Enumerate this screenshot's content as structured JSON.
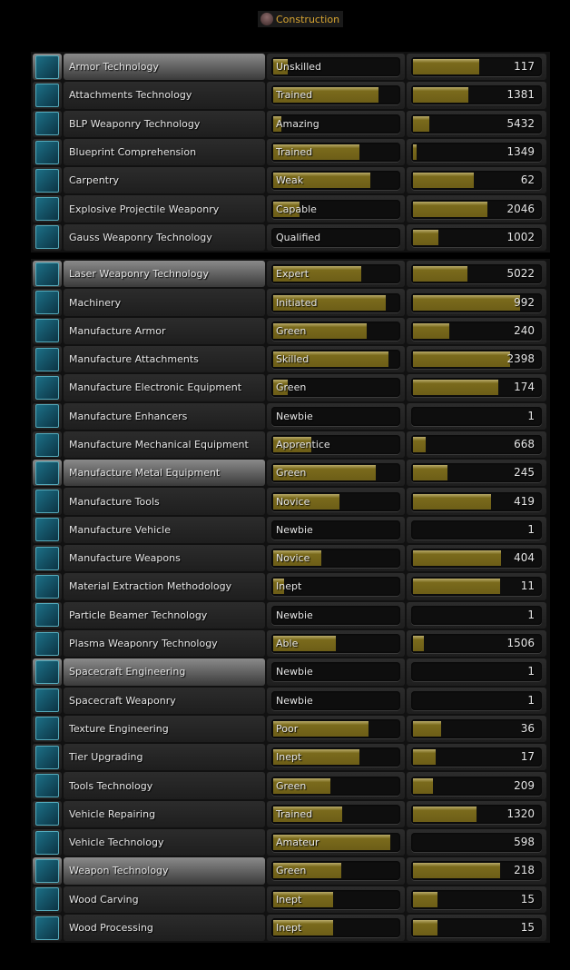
{
  "title": "Construction",
  "colors": {
    "accent": "#d8a531",
    "bar": "#7a6a1c"
  },
  "groups": [
    [
      {
        "name": "Armor Technology",
        "level": "Unskilled",
        "level_progress": 0.13,
        "value": "117",
        "value_progress": 0.52,
        "highlighted": true
      },
      {
        "name": "Attachments Technology",
        "level": "Trained",
        "level_progress": 0.83,
        "value": "1381",
        "value_progress": 0.44
      },
      {
        "name": "BLP Weaponry Technology",
        "level": "Amazing",
        "level_progress": 0.08,
        "value": "5432",
        "value_progress": 0.14
      },
      {
        "name": "Blueprint Comprehension",
        "level": "Trained",
        "level_progress": 0.68,
        "value": "1349",
        "value_progress": 0.04
      },
      {
        "name": "Carpentry",
        "level": "Weak",
        "level_progress": 0.77,
        "value": "62",
        "value_progress": 0.48
      },
      {
        "name": "Explosive Projectile Weaponry",
        "level": "Capable",
        "level_progress": 0.22,
        "value": "2046",
        "value_progress": 0.58
      },
      {
        "name": "Gauss Weaponry Technology",
        "level": "Qualified",
        "level_progress": 0,
        "value": "1002",
        "value_progress": 0.21
      }
    ],
    [
      {
        "name": "Laser Weaponry Technology",
        "level": "Expert",
        "level_progress": 0.7,
        "value": "5022",
        "value_progress": 0.43,
        "highlighted": true
      },
      {
        "name": "Machinery",
        "level": "Initiated",
        "level_progress": 0.89,
        "value": "992",
        "value_progress": 0.83
      },
      {
        "name": "Manufacture Armor",
        "level": "Green",
        "level_progress": 0.74,
        "value": "240",
        "value_progress": 0.29
      },
      {
        "name": "Manufacture Attachments",
        "level": "Skilled",
        "level_progress": 0.91,
        "value": "2398",
        "value_progress": 0.76
      },
      {
        "name": "Manufacture Electronic Equipment",
        "level": "Green",
        "level_progress": 0.13,
        "value": "174",
        "value_progress": 0.67
      },
      {
        "name": "Manufacture Enhancers",
        "level": "Newbie",
        "level_progress": 0,
        "value": "1",
        "value_progress": 0.01
      },
      {
        "name": "Manufacture Mechanical Equipment",
        "level": "Apprentice",
        "level_progress": 0.31,
        "value": "668",
        "value_progress": 0.11
      },
      {
        "name": "Manufacture Metal Equipment",
        "level": "Green",
        "level_progress": 0.81,
        "value": "245",
        "value_progress": 0.28,
        "highlighted": true
      },
      {
        "name": "Manufacture Tools",
        "level": "Novice",
        "level_progress": 0.53,
        "value": "419",
        "value_progress": 0.61
      },
      {
        "name": "Manufacture Vehicle",
        "level": "Newbie",
        "level_progress": 0,
        "value": "1",
        "value_progress": 0.01
      },
      {
        "name": "Manufacture Weapons",
        "level": "Novice",
        "level_progress": 0.39,
        "value": "404",
        "value_progress": 0.69
      },
      {
        "name": "Material Extraction Methodology",
        "level": "Inept",
        "level_progress": 0.1,
        "value": "11",
        "value_progress": 0.68
      },
      {
        "name": "Particle Beamer Technology",
        "level": "Newbie",
        "level_progress": 0,
        "value": "1",
        "value_progress": 0.01
      },
      {
        "name": "Plasma Weaponry Technology",
        "level": "Able",
        "level_progress": 0.5,
        "value": "1506",
        "value_progress": 0.1
      },
      {
        "name": "Spacecraft Engineering",
        "level": "Newbie",
        "level_progress": 0,
        "value": "1",
        "value_progress": 0.01,
        "highlighted": true
      },
      {
        "name": "Spacecraft Weaponry",
        "level": "Newbie",
        "level_progress": 0,
        "value": "1",
        "value_progress": 0.01
      },
      {
        "name": "Texture Engineering",
        "level": "Poor",
        "level_progress": 0.75,
        "value": "36",
        "value_progress": 0.23
      },
      {
        "name": "Tier Upgrading",
        "level": "Inept",
        "level_progress": 0.68,
        "value": "17",
        "value_progress": 0.19
      },
      {
        "name": "Tools Technology",
        "level": "Green",
        "level_progress": 0.46,
        "value": "209",
        "value_progress": 0.17
      },
      {
        "name": "Vehicle Repairing",
        "level": "Trained",
        "level_progress": 0.55,
        "value": "1320",
        "value_progress": 0.5
      },
      {
        "name": "Vehicle Technology",
        "level": "Amateur",
        "level_progress": 0.92,
        "value": "598",
        "value_progress": 0.01
      },
      {
        "name": "Weapon Technology",
        "level": "Green",
        "level_progress": 0.54,
        "value": "218",
        "value_progress": 0.68,
        "highlighted": true
      },
      {
        "name": "Wood Carving",
        "level": "Inept",
        "level_progress": 0.48,
        "value": "15",
        "value_progress": 0.2
      },
      {
        "name": "Wood Processing",
        "level": "Inept",
        "level_progress": 0.48,
        "value": "15",
        "value_progress": 0.2
      }
    ]
  ]
}
